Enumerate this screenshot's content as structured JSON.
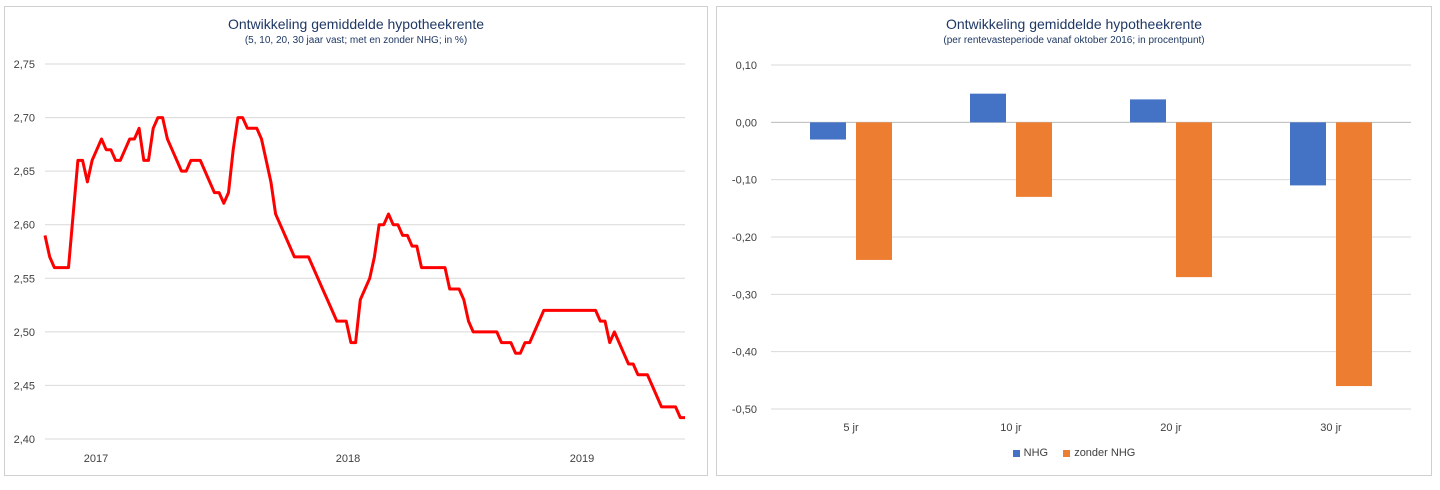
{
  "chart_data": [
    {
      "type": "line",
      "title": "Ontwikkeling gemiddelde hypotheekrente",
      "subtitle": "(5, 10, 20, 30 jaar vast; met en zonder NHG; in %)",
      "xlabel": "",
      "ylabel": "",
      "ylim": [
        2.4,
        2.75
      ],
      "yticks": [
        "2,40",
        "2,45",
        "2,50",
        "2,55",
        "2,60",
        "2,65",
        "2,70",
        "2,75"
      ],
      "xtick_labels": [
        "2017",
        "2018",
        "2019"
      ],
      "grid": true,
      "legend": "none",
      "series_color": "#ff0000",
      "series": [
        {
          "values": [
            2.59,
            2.57,
            2.56,
            2.56,
            2.56,
            2.56,
            2.61,
            2.66,
            2.66,
            2.64,
            2.66,
            2.67,
            2.68,
            2.67,
            2.67,
            2.66,
            2.66,
            2.67,
            2.68,
            2.68,
            2.69,
            2.66,
            2.66,
            2.69,
            2.7,
            2.7,
            2.68,
            2.67,
            2.66,
            2.65,
            2.65,
            2.66,
            2.66,
            2.66,
            2.65,
            2.64,
            2.63,
            2.63,
            2.62,
            2.63,
            2.67,
            2.7,
            2.7,
            2.69,
            2.69,
            2.69,
            2.68,
            2.66,
            2.64,
            2.61,
            2.6,
            2.59,
            2.58,
            2.57,
            2.57,
            2.57,
            2.57,
            2.56,
            2.55,
            2.54,
            2.53,
            2.52,
            2.51,
            2.51,
            2.51,
            2.49,
            2.49,
            2.53,
            2.54,
            2.55,
            2.57,
            2.6,
            2.6,
            2.61,
            2.6,
            2.6,
            2.59,
            2.59,
            2.58,
            2.58,
            2.56,
            2.56,
            2.56,
            2.56,
            2.56,
            2.56,
            2.54,
            2.54,
            2.54,
            2.53,
            2.51,
            2.5,
            2.5,
            2.5,
            2.5,
            2.5,
            2.5,
            2.49,
            2.49,
            2.49,
            2.48,
            2.48,
            2.49,
            2.49,
            2.5,
            2.51,
            2.52,
            2.52,
            2.52,
            2.52,
            2.52,
            2.52,
            2.52,
            2.52,
            2.52,
            2.52,
            2.52,
            2.52,
            2.51,
            2.51,
            2.49,
            2.5,
            2.49,
            2.48,
            2.47,
            2.47,
            2.46,
            2.46,
            2.46,
            2.45,
            2.44,
            2.43,
            2.43,
            2.43,
            2.43,
            2.42,
            2.42
          ]
        }
      ]
    },
    {
      "type": "bar",
      "title": "Ontwikkeling gemiddelde hypotheekrente",
      "subtitle": "(per rentevasteperiode vanaf oktober 2016; in procentpunt)",
      "xlabel": "",
      "ylabel": "",
      "ylim": [
        -0.5,
        0.1
      ],
      "yticks": [
        "-0,50",
        "-0,40",
        "-0,30",
        "-0,20",
        "-0,10",
        "0,00",
        "0,10"
      ],
      "categories": [
        "5 jr",
        "10 jr",
        "20 jr",
        "30 jr"
      ],
      "grid": true,
      "legend": "bottom",
      "series": [
        {
          "name": "NHG",
          "color": "#4472c4",
          "values": [
            -0.03,
            0.05,
            0.04,
            -0.11
          ]
        },
        {
          "name": "zonder NHG",
          "color": "#ed7d31",
          "values": [
            -0.24,
            -0.13,
            -0.27,
            -0.46
          ]
        }
      ]
    }
  ]
}
